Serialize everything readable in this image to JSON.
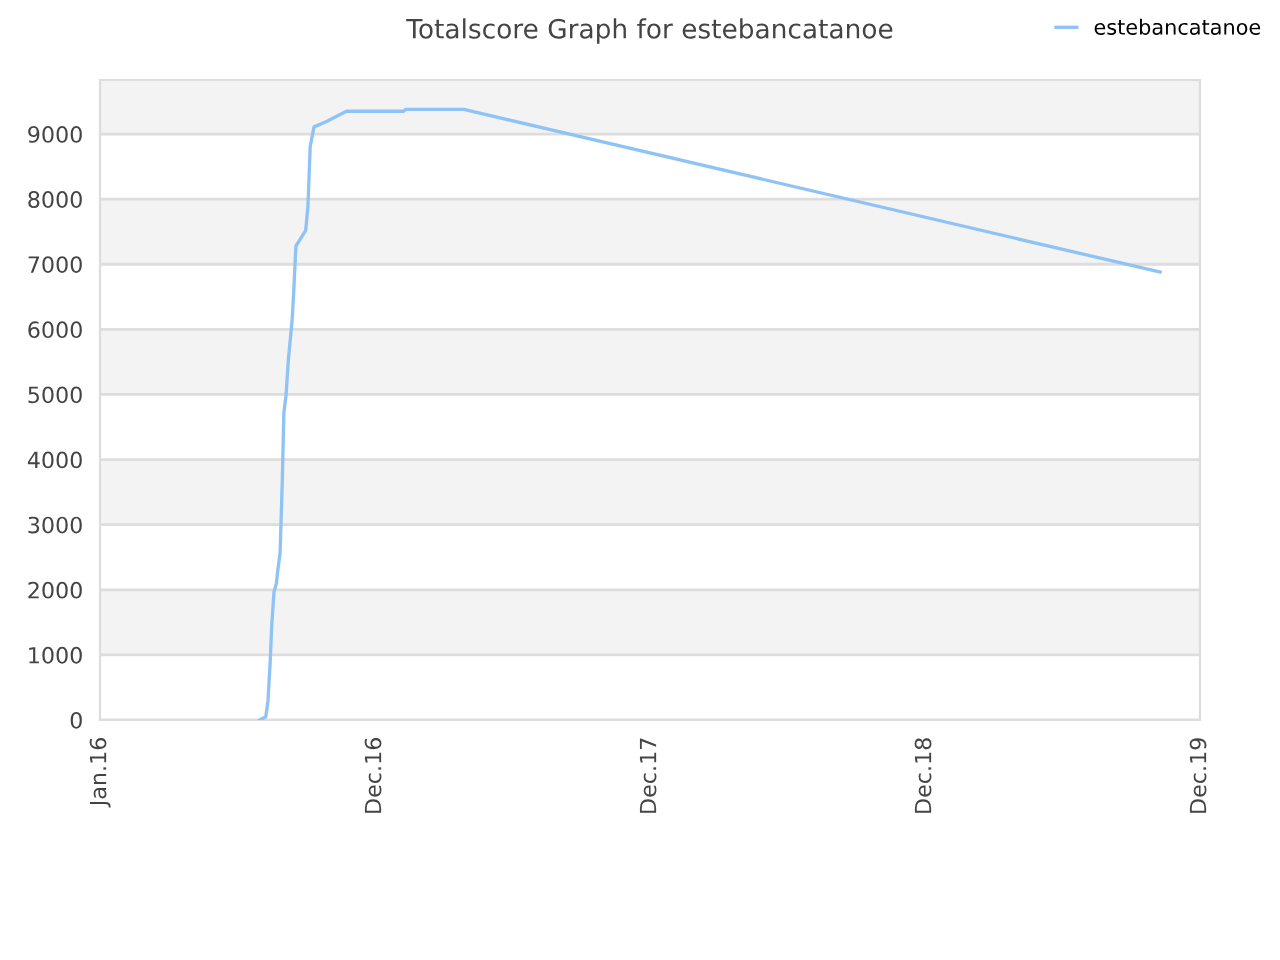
{
  "chart_data": {
    "type": "line",
    "title": "Totalscore Graph for estebancatanoe",
    "x": [
      "2016-07-31",
      "2016-08-08",
      "2016-08-11",
      "2016-08-14",
      "2016-08-16",
      "2016-08-19",
      "2016-08-22",
      "2016-08-24",
      "2016-08-27",
      "2016-08-30",
      "2016-09-01",
      "2016-09-04",
      "2016-09-07",
      "2016-09-12",
      "2016-09-14",
      "2016-09-17",
      "2016-09-22",
      "2016-09-30",
      "2016-10-03",
      "2016-10-06",
      "2016-10-11",
      "2016-10-27",
      "2016-11-23",
      "2017-02-07",
      "2017-02-10",
      "2017-04-28",
      "2017-05-19",
      "2019-11-08"
    ],
    "series": [
      {
        "name": "estebancatanoe",
        "color": "#90c3f5",
        "values": [
          0,
          50,
          300,
          920,
          1470,
          1970,
          2090,
          2300,
          2560,
          3690,
          4710,
          5000,
          5530,
          6140,
          6550,
          7280,
          7370,
          7520,
          7890,
          8810,
          9110,
          9190,
          9350,
          9350,
          9380,
          9380,
          9320,
          6880
        ]
      }
    ],
    "xlim": [
      "2016-01-01",
      "2019-12-31"
    ],
    "xticks": [
      {
        "value": "2016-01-01",
        "label": "Jan.16"
      },
      {
        "value": "2016-12-31",
        "label": "Dec.16"
      },
      {
        "value": "2017-12-31",
        "label": "Dec.17"
      },
      {
        "value": "2018-12-31",
        "label": "Dec.18"
      },
      {
        "value": "2019-12-31",
        "label": "Dec.19"
      }
    ],
    "ylim": [
      0,
      9830
    ],
    "yticks": [
      0,
      1000,
      2000,
      3000,
      4000,
      5000,
      6000,
      7000,
      8000,
      9000
    ],
    "grid": "y",
    "legend": "top right",
    "marker": "none",
    "line_style": "solid"
  }
}
